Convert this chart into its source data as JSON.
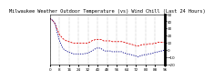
{
  "title": "Milwaukee Weather Outdoor Temperature (vs) Wind Chill (Last 24 Hours)",
  "title_fontsize": 3.8,
  "background_color": "#ffffff",
  "grid_color": "#888888",
  "ylim": [
    -20,
    50
  ],
  "yticks": [
    -20,
    -10,
    0,
    10,
    20,
    30,
    40,
    50
  ],
  "num_points": 97,
  "temp_color": "#dd0000",
  "windchill_color": "#000088",
  "temp_values": [
    44,
    43,
    42,
    40,
    38,
    34,
    30,
    26,
    22,
    20,
    18,
    16,
    15,
    14,
    13,
    13,
    12,
    11,
    11,
    10,
    10,
    10,
    10,
    10,
    10,
    10,
    10,
    10,
    10,
    10,
    10,
    10,
    10,
    11,
    12,
    13,
    14,
    14,
    15,
    15,
    15,
    15,
    15,
    15,
    14,
    13,
    13,
    13,
    13,
    13,
    13,
    13,
    12,
    12,
    12,
    12,
    12,
    12,
    12,
    12,
    12,
    12,
    11,
    11,
    10,
    10,
    9,
    9,
    8,
    8,
    7,
    7,
    6,
    6,
    6,
    7,
    7,
    8,
    8,
    8,
    8,
    8,
    9,
    9,
    9,
    9,
    9,
    10,
    10,
    10,
    11,
    11,
    11,
    11,
    11,
    11,
    11
  ],
  "windchill_values": [
    44,
    43,
    42,
    40,
    38,
    34,
    26,
    20,
    14,
    10,
    6,
    3,
    1,
    0,
    -1,
    -2,
    -3,
    -3,
    -4,
    -4,
    -5,
    -5,
    -5,
    -5,
    -5,
    -5,
    -5,
    -5,
    -5,
    -5,
    -4,
    -4,
    -4,
    -3,
    -2,
    -1,
    0,
    1,
    2,
    3,
    3,
    3,
    3,
    2,
    1,
    0,
    -1,
    -1,
    -1,
    -1,
    -1,
    -1,
    -2,
    -2,
    -2,
    -2,
    -2,
    -2,
    -2,
    -2,
    -2,
    -3,
    -4,
    -4,
    -5,
    -5,
    -5,
    -6,
    -6,
    -7,
    -7,
    -8,
    -8,
    -9,
    -9,
    -8,
    -8,
    -7,
    -7,
    -6,
    -6,
    -6,
    -5,
    -5,
    -5,
    -4,
    -4,
    -3,
    -3,
    -3,
    -2,
    -2,
    -1,
    -1,
    -1,
    0,
    0
  ],
  "tick_fontsize": 3.0,
  "line_width": 0.6,
  "dash_pattern_temp": [
    2.5,
    1.5
  ],
  "dash_pattern_wc": [
    1.5,
    1.5
  ]
}
